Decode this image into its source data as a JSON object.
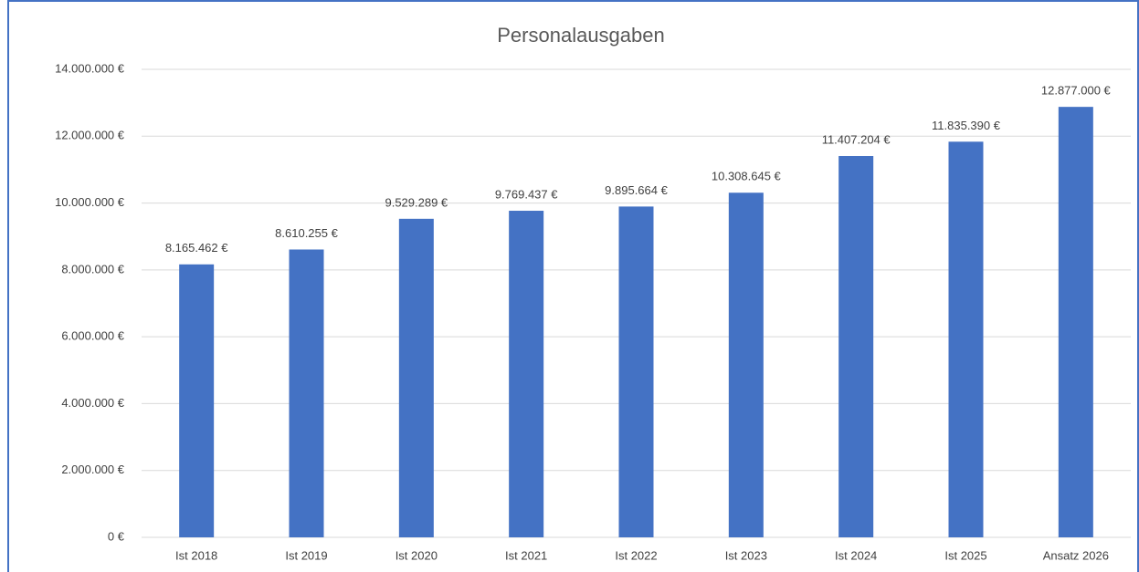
{
  "chart_data": {
    "type": "bar",
    "title": "Personalausgaben",
    "categories": [
      "Ist 2018",
      "Ist 2019",
      "Ist 2020",
      "Ist 2021",
      "Ist 2022",
      "Ist 2023",
      "Ist 2024",
      "Ist 2025",
      "Ansatz 2026"
    ],
    "values": [
      8165462,
      8610255,
      9529289,
      9769437,
      9895664,
      10308645,
      11407204,
      11835390,
      12877000
    ],
    "value_labels": [
      "8.165.462 €",
      "8.610.255 €",
      "9.529.289 €",
      "9.769.437 €",
      "9.895.664 €",
      "10.308.645 €",
      "11.407.204 €",
      "11.835.390 €",
      "12.877.000 €"
    ],
    "color": "#4472c4",
    "ylim": [
      0,
      14000000
    ],
    "yticks": [
      {
        "value": 0,
        "label": "0 €"
      },
      {
        "value": 2000000,
        "label": "2.000.000 €"
      },
      {
        "value": 4000000,
        "label": "4.000.000 €"
      },
      {
        "value": 6000000,
        "label": "6.000.000 €"
      },
      {
        "value": 8000000,
        "label": "8.000.000 €"
      },
      {
        "value": 10000000,
        "label": "10.000.000 €"
      },
      {
        "value": 12000000,
        "label": "12.000.000 €"
      },
      {
        "value": 14000000,
        "label": "14.000.000 €"
      }
    ],
    "grid": true
  }
}
